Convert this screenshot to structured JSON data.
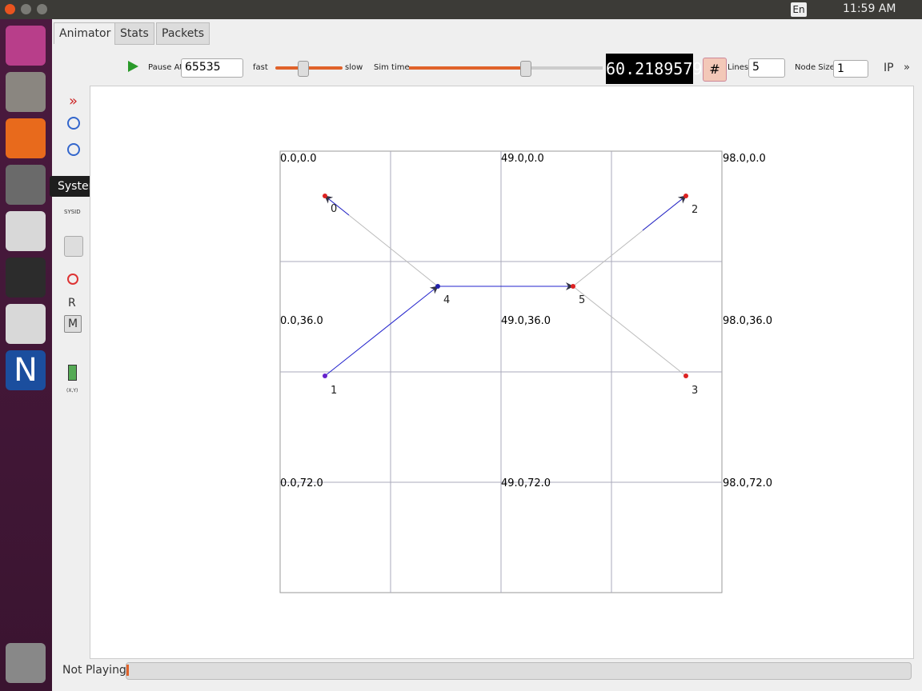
{
  "top_panel": {
    "keyboard": "En",
    "clock": "11:59 AM"
  },
  "tooltip": "System Settings",
  "tabs": [
    "Animator",
    "Stats",
    "Packets"
  ],
  "toolbar": {
    "pause_at_label": "Pause At",
    "pause_at_value": "65535",
    "fast": "fast",
    "slow": "slow",
    "sim_time_label": "Sim time",
    "sim_time": "60.2189579",
    "lines_label": "Lines",
    "lines_value": "5",
    "node_size_label": "Node Size",
    "node_size_value": "1",
    "ip": "IP",
    "more": "»"
  },
  "side_tools": [
    "SYSID",
    "R",
    "M",
    "(X,Y)"
  ],
  "canvas": {
    "grid_labels": [
      "0.0,0.0",
      "49.0,0.0",
      "98.0,0.0",
      "0.0,36.0",
      "49.0,36.0",
      "98.0,36.0",
      "0.0,72.0",
      "49.0,72.0",
      "98.0,72.0"
    ],
    "nodes": [
      "0",
      "1",
      "2",
      "3",
      "4",
      "5"
    ]
  },
  "status": "Not Playing"
}
